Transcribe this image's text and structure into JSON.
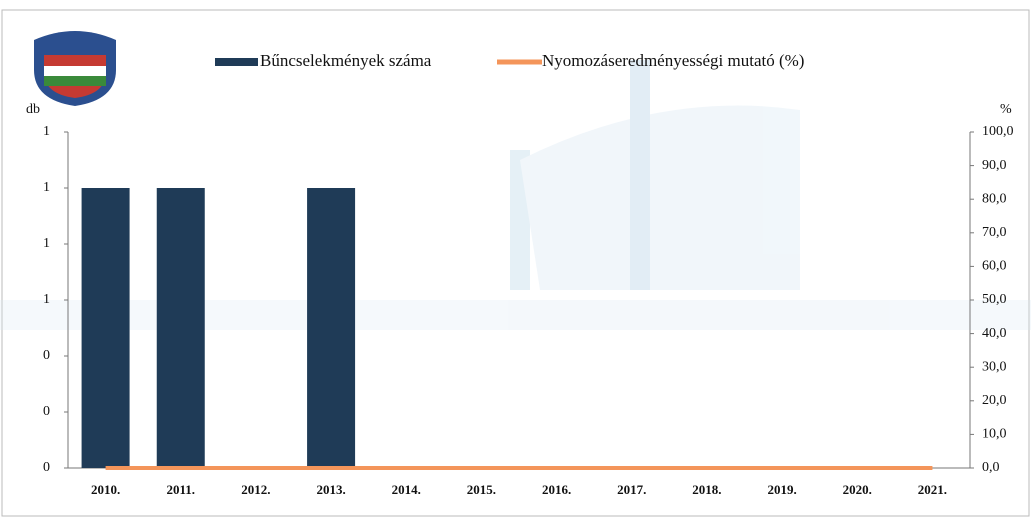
{
  "chart_data": {
    "type": "bar-line",
    "categories": [
      "2010.",
      "2011.",
      "2012.",
      "2013.",
      "2014.",
      "2015.",
      "2016.",
      "2017.",
      "2018.",
      "2019.",
      "2020.",
      "2021."
    ],
    "series": [
      {
        "name": "Bűncselekmények száma",
        "type": "bar",
        "color": "#1f3b57",
        "values": [
          1,
          1,
          0,
          1,
          0,
          0,
          0,
          0,
          0,
          0,
          0,
          0
        ]
      },
      {
        "name": "Nyomozáseredményességi mutató (%)",
        "type": "line",
        "axis": "y2",
        "color": "#f4955a",
        "values": [
          0,
          0,
          0,
          0,
          0,
          0,
          0,
          0,
          0,
          0,
          0,
          0
        ]
      }
    ],
    "ylabel": "db",
    "y2label": "%",
    "ylim": [
      0,
      1.2
    ],
    "yticks": [
      0,
      {
        "value": 0.2,
        "label": "0"
      },
      {
        "value": 0.4,
        "label": "0"
      },
      {
        "value": 0.6,
        "label": "1"
      },
      {
        "value": 0.8,
        "label": "1"
      },
      1,
      {
        "value": 1.2,
        "label": "1"
      }
    ],
    "y2lim": [
      0,
      100
    ],
    "y2ticks": [
      {
        "value": 0,
        "label": "0,0"
      },
      {
        "value": 10,
        "label": "10,0"
      },
      {
        "value": 20,
        "label": "20,0"
      },
      {
        "value": 30,
        "label": "30,0"
      },
      {
        "value": 40,
        "label": "40,0"
      },
      {
        "value": 50,
        "label": "50,0"
      },
      {
        "value": 60,
        "label": "60,0"
      },
      {
        "value": 70,
        "label": "70,0"
      },
      {
        "value": 80,
        "label": "80,0"
      },
      {
        "value": 90,
        "label": "90,0"
      },
      {
        "value": 100,
        "label": "100,0"
      }
    ],
    "legend": "top"
  }
}
